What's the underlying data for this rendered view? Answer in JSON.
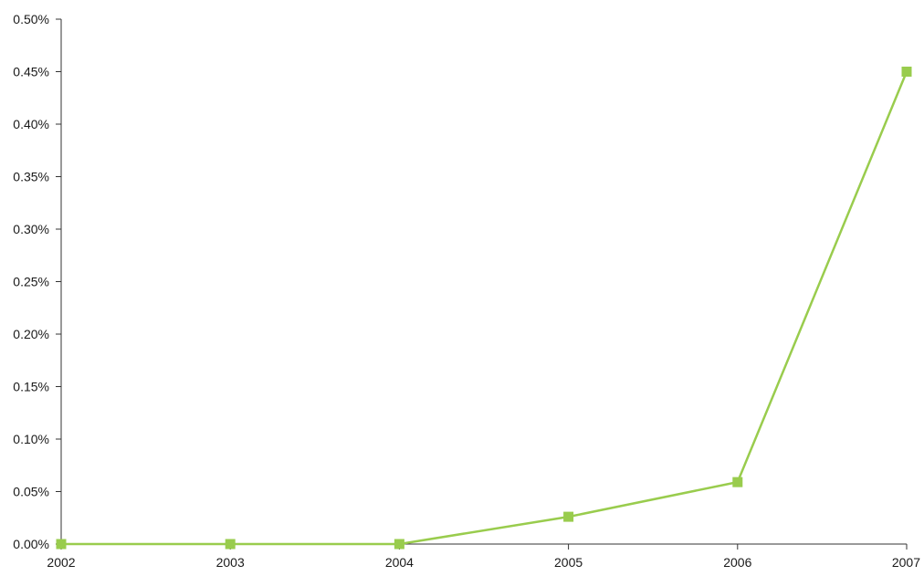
{
  "chart_data": {
    "type": "line",
    "categories": [
      "2002",
      "2003",
      "2004",
      "2005",
      "2006",
      "2007"
    ],
    "series": [
      {
        "values": [
          0.0,
          0.0,
          0.0,
          0.026,
          0.059,
          0.45
        ],
        "color": "#99cc4d",
        "marker": "square"
      }
    ],
    "ylim": [
      0,
      0.5
    ],
    "y_ticks": [
      0.0,
      0.05,
      0.1,
      0.15,
      0.2,
      0.25,
      0.3,
      0.35,
      0.4,
      0.45,
      0.5
    ],
    "y_tick_labels": [
      "0.00%",
      "0.05%",
      "0.10%",
      "0.15%",
      "0.20%",
      "0.25%",
      "0.30%",
      "0.35%",
      "0.40%",
      "0.45%",
      "0.50%"
    ],
    "grid": false,
    "legend": "none",
    "title": "",
    "xlabel": "",
    "ylabel": ""
  }
}
